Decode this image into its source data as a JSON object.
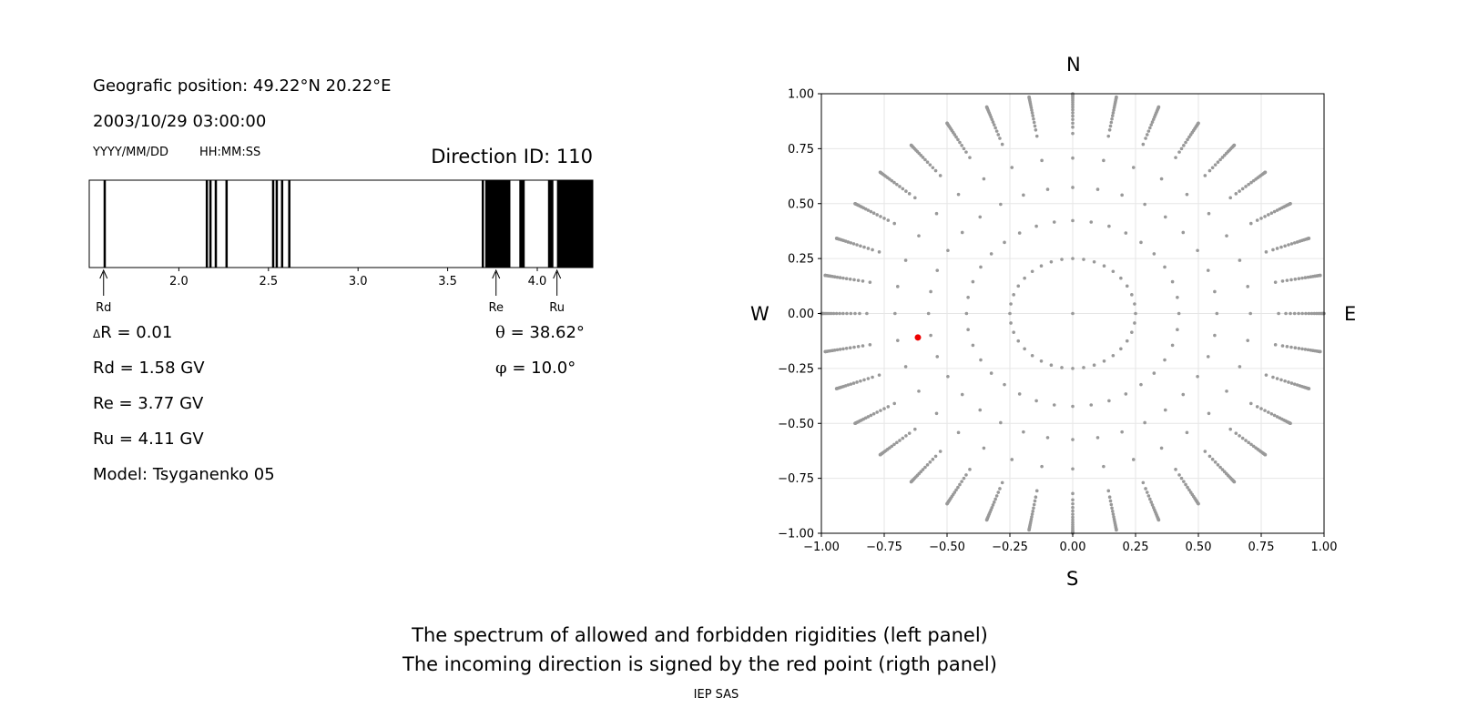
{
  "header": {
    "geo_position": "Geografic position: 49.22°N 20.22°E",
    "datetime": "2003/10/29 03:00:00",
    "date_format": "YYYY/MM/DD",
    "time_format": "HH:MM:SS",
    "direction_id": "Direction ID: 110"
  },
  "params": {
    "delta_r_symbol": "Δ",
    "delta_r": "R = 0.01",
    "rd": "Rd = 1.58 GV",
    "re": "Re = 3.77 GV",
    "ru": "Ru = 4.11 GV",
    "model": "Model: Tsyganenko 05",
    "theta_symbol": "θ",
    "theta": " = 38.62°",
    "phi_symbol": "φ",
    "phi": " = 10.0°"
  },
  "caption": {
    "line1": "The spectrum of allowed and forbidden rigidities (left panel)",
    "line2": "The incoming direction is signed by the red point (rigth panel)",
    "credit": "IEP SAS"
  },
  "chart_data": [
    {
      "type": "bar",
      "name": "rigidity-spectrum",
      "xlim": [
        1.5,
        4.31
      ],
      "ylim": [
        0,
        1
      ],
      "xticks": [
        2.0,
        2.5,
        3.0,
        3.5,
        4.0
      ],
      "xtick_labels": [
        "2.0",
        "2.5",
        "3.0",
        "3.5",
        "4.0"
      ],
      "forbidden_intervals": [
        [
          1.58,
          1.59
        ],
        [
          2.15,
          2.16
        ],
        [
          2.17,
          2.18
        ],
        [
          2.2,
          2.21
        ],
        [
          2.26,
          2.27
        ],
        [
          2.52,
          2.53
        ],
        [
          2.54,
          2.55
        ],
        [
          2.57,
          2.58
        ],
        [
          2.61,
          2.62
        ],
        [
          3.69,
          3.7
        ],
        [
          3.71,
          3.85
        ],
        [
          3.9,
          3.93
        ],
        [
          4.06,
          4.09
        ],
        [
          4.11,
          4.31
        ]
      ],
      "markers": [
        {
          "label": "Rd",
          "value": 1.58
        },
        {
          "label": "Re",
          "value": 3.77
        },
        {
          "label": "Ru",
          "value": 4.11
        }
      ],
      "colors": {
        "forbidden": "#000000",
        "allowed": "#ffffff"
      }
    },
    {
      "type": "scatter",
      "name": "direction-map",
      "xlim": [
        -1,
        1
      ],
      "ylim": [
        -1,
        1
      ],
      "xticks": [
        -1.0,
        -0.75,
        -0.5,
        -0.25,
        0.0,
        0.25,
        0.5,
        0.75,
        1.0
      ],
      "xtick_labels": [
        "−1.00",
        "−0.75",
        "−0.50",
        "−0.25",
        "0.00",
        "0.25",
        "0.50",
        "0.75",
        "1.00"
      ],
      "yticks": [
        1.0,
        0.75,
        0.5,
        0.25,
        0.0,
        -0.25,
        -0.5,
        -0.75,
        -1.0
      ],
      "ytick_labels": [
        "1.00",
        "0.75",
        "0.50",
        "0.25",
        "0.00",
        "−0.25",
        "−0.50",
        "−0.75",
        "−1.00"
      ],
      "grid": true,
      "directions": {
        "north": "N",
        "south": "S",
        "west": "W",
        "east": "E"
      },
      "grid_series": {
        "description_rings_sin_theta": [
          0.25,
          0.42,
          0.57,
          0.71,
          0.82,
          0.91,
          0.97,
          1.0
        ],
        "zenith_steps_deg": [
          15,
          25,
          35,
          45,
          55,
          65,
          75,
          85,
          90
        ],
        "fine_steps_deg": 2,
        "azimuth_step_deg": 10,
        "color": "#999999"
      },
      "highlight_point": {
        "x": -0.616,
        "y": -0.109,
        "color": "#ee0000"
      }
    }
  ]
}
